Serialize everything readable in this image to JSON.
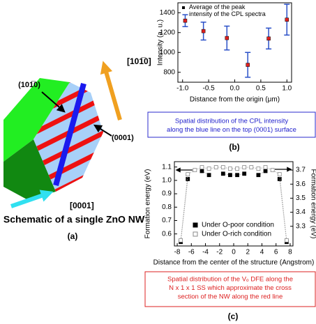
{
  "panel_a": {
    "label_face_side": "(101̅0)",
    "label_dir_side": "[101̅0]",
    "label_face_top": "(0001)",
    "label_dir_axis": "[0001]",
    "title": "Schematic of a single ZnO NW",
    "tag": "(a)"
  },
  "chart_data": [
    {
      "type": "errorbar",
      "xlabel": "Distance from the origin (μm)",
      "ylabel": "Intensity (a. u.)",
      "x": [
        -0.95,
        -0.6,
        -0.15,
        0.25,
        0.65,
        1.0
      ],
      "series": [
        {
          "name": "Average of the peak intensity of the CPL spectra",
          "color": "#e02020",
          "error_color": "#2a50c8",
          "values": [
            1320,
            1215,
            1145,
            875,
            1140,
            1330
          ],
          "errors": [
            60,
            90,
            120,
            125,
            105,
            155
          ]
        }
      ],
      "xlim": [
        -1.09,
        1.09
      ],
      "xticks": [
        {
          "value": -1.0,
          "label": "-1.0"
        },
        {
          "value": -0.5,
          "label": "-0.5"
        },
        {
          "value": 0.0,
          "label": "0.0"
        },
        {
          "value": 0.5,
          "label": "0.5"
        },
        {
          "value": 1.0,
          "label": "1.0"
        }
      ],
      "ylim": [
        700,
        1500
      ],
      "yticks": [
        800,
        1000,
        1200,
        1400
      ],
      "legend": "upper left",
      "caption_lines": [
        "Spatial distribution of the CPL intensity",
        "along the blue line on the top (0001) surface"
      ],
      "tag": "(b)"
    },
    {
      "type": "line",
      "xlabel": "Distance from the center of the structure (Angstrom)",
      "ylabel": "Formation energy (eV)",
      "y2label": "Formation energy (eV)",
      "x": [
        -7.5,
        -6.5,
        -5.5,
        -4.5,
        -3.5,
        -2.5,
        -1.5,
        -0.5,
        0.5,
        1.5,
        2.5,
        3.5,
        4.5,
        5.5,
        6.5,
        7.5
      ],
      "series": [
        {
          "name": "Under O-poor condition",
          "color": "#000000",
          "marker": "filled",
          "axis": "y",
          "values": [
            0.54,
            1.01,
            null,
            1.07,
            1.04,
            null,
            1.05,
            1.04,
            1.04,
            1.05,
            null,
            1.04,
            1.07,
            null,
            1.01,
            0.54
          ]
        },
        {
          "name": "Under O-rich condition",
          "color": "#888888",
          "marker": "open",
          "axis": "y2",
          "values": [
            3.2,
            3.67,
            3.7,
            3.72,
            3.71,
            3.72,
            3.72,
            3.71,
            3.71,
            3.72,
            3.72,
            3.71,
            3.72,
            3.7,
            3.67,
            3.2
          ]
        }
      ],
      "xlim": [
        -8.4,
        8.4
      ],
      "xticks": [
        -8,
        -6,
        -4,
        -2,
        0,
        2,
        4,
        6,
        8
      ],
      "ylim": [
        0.51,
        1.14
      ],
      "yticks": [
        0.6,
        0.7,
        0.8,
        0.9,
        {
          "value": 1.0,
          "label": "1.0"
        },
        1.1
      ],
      "y2lim": [
        3.16,
        3.76
      ],
      "y2ticks": [
        3.3,
        3.4,
        3.5,
        3.6,
        3.7
      ],
      "legend": "lower center",
      "caption_lines": [
        "Spatial distribution of the Vₒ DFE along the",
        "N x 1 x 1 SS which approximate the cross",
        "section of the NW along the red line"
      ],
      "tag": "(c)"
    }
  ]
}
